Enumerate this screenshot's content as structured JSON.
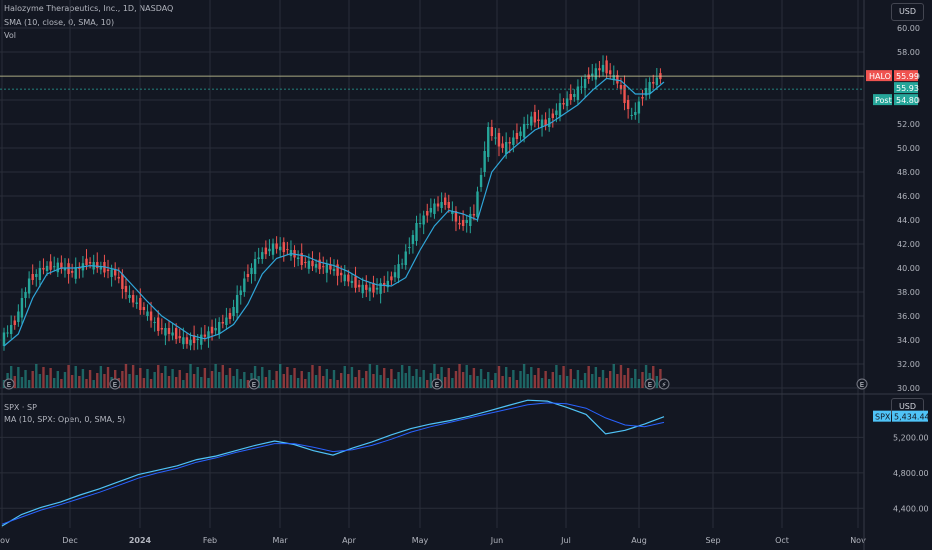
{
  "header": {
    "title": "Halozyme Therapeutics, Inc., 1D, NASDAQ",
    "sma_label": "SMA (10, close, 0, SMA, 10)",
    "vol_label": "Vol",
    "currency": "USD"
  },
  "lower": {
    "title": "SPX · SP",
    "ma_label": "MA (10, SPX: Open, 0, SMA, 5)",
    "currency": "USD"
  },
  "price_badges": {
    "symbol": "HALO",
    "last": "55.99",
    "mid": "55.93",
    "post_label": "Post",
    "post": "54.80",
    "spx_symbol": "SPX",
    "spx_last": "5,434.44"
  },
  "colors": {
    "up": "#26a69a",
    "down": "#ef5350",
    "ma": "#2fa6d9",
    "bg": "#131722",
    "grid": "#2a2e39",
    "accent_badge": "#26a69a"
  },
  "event_markers": [
    "E",
    "E",
    "E",
    "E",
    "E",
    "E",
    "E"
  ],
  "chart_data": [
    {
      "type": "candlestick",
      "title": "Halozyme Therapeutics, Inc., 1D, NASDAQ",
      "x_ticks": [
        "Nov",
        "Dec",
        "2024",
        "Feb",
        "Mar",
        "Apr",
        "May",
        "Jun",
        "Jul",
        "Aug",
        "Sep",
        "Oct",
        "Nov"
      ],
      "y_ticks": [
        "30.00",
        "32.00",
        "34.00",
        "36.00",
        "38.00",
        "40.00",
        "42.00",
        "44.00",
        "46.00",
        "48.00",
        "50.00",
        "52.00",
        "54.00",
        "56.00",
        "58.00",
        "60.00"
      ],
      "ylim": [
        29.5,
        61.5
      ],
      "series": [
        {
          "name": "HALO close (approx, sampled)",
          "values": [
            34.0,
            35.5,
            39.0,
            40.0,
            40.2,
            39.6,
            40.5,
            40.0,
            39.5,
            37.5,
            36.5,
            35.0,
            34.5,
            33.8,
            34.2,
            35.0,
            36.0,
            39.0,
            41.0,
            41.8,
            41.5,
            40.5,
            40.2,
            40.0,
            39.2,
            38.4,
            38.2,
            38.8,
            40.5,
            43.5,
            45.0,
            45.5,
            43.5,
            44.5,
            51.5,
            50.0,
            51.0,
            52.5,
            52.0,
            53.5,
            54.5,
            56.0,
            56.8,
            55.5,
            52.5,
            55.0,
            55.99
          ]
        }
      ],
      "sma": {
        "name": "SMA 10",
        "values": [
          33.5,
          34.5,
          37.5,
          39.5,
          40.0,
          40.0,
          40.2,
          40.1,
          39.8,
          38.5,
          37.2,
          36.0,
          35.2,
          34.4,
          34.1,
          34.5,
          35.3,
          37.0,
          39.5,
          40.8,
          41.2,
          41.0,
          40.5,
          40.2,
          39.7,
          39.0,
          38.6,
          38.5,
          39.2,
          41.5,
          43.5,
          44.8,
          44.5,
          44.0,
          48.0,
          49.5,
          50.5,
          51.5,
          52.0,
          52.8,
          53.6,
          54.8,
          55.8,
          55.6,
          54.5,
          54.5,
          55.5
        ]
      },
      "volume_note": "relative volume bars"
    },
    {
      "type": "line",
      "title": "SPX · SP",
      "y_ticks": [
        "4,400.00",
        "4,800.00",
        "5,200.00"
      ],
      "ylim": [
        4200,
        5600
      ],
      "series": [
        {
          "name": "SPX",
          "values": [
            4200,
            4330,
            4410,
            4470,
            4550,
            4620,
            4700,
            4780,
            4830,
            4880,
            4950,
            4990,
            5050,
            5110,
            5160,
            5120,
            5050,
            5000,
            5080,
            5150,
            5230,
            5300,
            5350,
            5390,
            5440,
            5500,
            5560,
            5620,
            5610,
            5540,
            5460,
            5240,
            5280,
            5350,
            5434
          ]
        },
        {
          "name": "MA 10",
          "values": [
            4220,
            4300,
            4380,
            4440,
            4510,
            4580,
            4660,
            4740,
            4800,
            4850,
            4920,
            4970,
            5030,
            5080,
            5130,
            5130,
            5090,
            5040,
            5060,
            5110,
            5180,
            5260,
            5320,
            5370,
            5420,
            5470,
            5520,
            5570,
            5590,
            5580,
            5530,
            5420,
            5340,
            5320,
            5370
          ]
        }
      ]
    }
  ]
}
